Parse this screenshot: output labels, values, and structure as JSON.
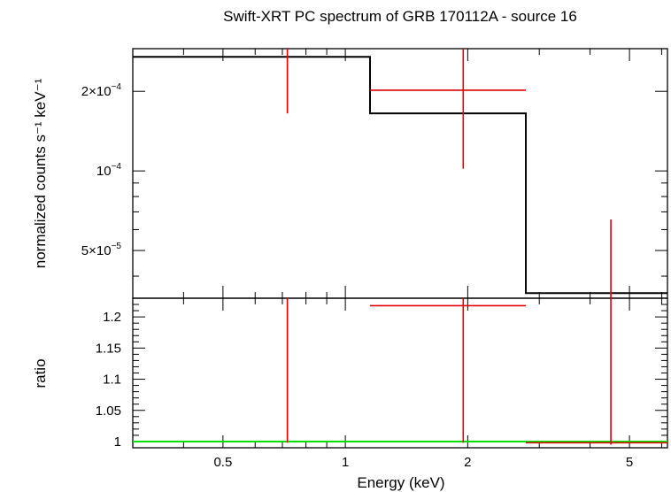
{
  "chart_data": {
    "type": "line",
    "title": "Swift-XRT PC spectrum of GRB 170112A - source 16",
    "xlabel": "Energy (keV)",
    "xscale": "log",
    "xlim": [
      0.3,
      6.2
    ],
    "x_ticks": [
      {
        "v": 0.5,
        "label": "0.5"
      },
      {
        "v": 1,
        "label": "1"
      },
      {
        "v": 2,
        "label": "2"
      },
      {
        "v": 5,
        "label": "5"
      }
    ],
    "top_panel": {
      "ylabel": "normalized counts s⁻¹ keV⁻¹",
      "yscale": "log",
      "ylim": [
        3.3e-05,
        0.00029
      ],
      "y_ticks": [
        {
          "v": 5e-05,
          "mant": "5×10",
          "exp": "−5"
        },
        {
          "v": 0.0001,
          "mant": "10",
          "exp": "−4"
        },
        {
          "v": 0.0002,
          "mant": "2×10",
          "exp": "−4"
        }
      ],
      "data_points": [
        {
          "x": 0.72,
          "xerr": [
            0.72,
            0.72
          ],
          "y": 0.0003,
          "yerr": [
            0.000165,
            0.00033
          ]
        },
        {
          "x": 1.95,
          "xerr": [
            1.15,
            2.78
          ],
          "y": 0.000202,
          "yerr": [
            0.000102,
            0.000315
          ]
        },
        {
          "x": 4.5,
          "xerr": [
            4.5,
            4.5
          ],
          "y": 3.5e-05,
          "yerr": [
            3.3e-05,
            6.55e-05
          ]
        }
      ],
      "model_steps": [
        {
          "x0": 0.3,
          "x1": 1.15,
          "y": 0.00027
        },
        {
          "x0": 1.15,
          "x1": 2.78,
          "y": 0.000165
        },
        {
          "x0": 2.78,
          "x1": 6.2,
          "y": 3.45e-05
        }
      ]
    },
    "bottom_panel": {
      "ylabel": "ratio",
      "ylim": [
        0.99,
        1.23
      ],
      "y_ticks": [
        {
          "v": 1,
          "label": "1"
        },
        {
          "v": 1.05,
          "label": "1.05"
        },
        {
          "v": 1.1,
          "label": "1.1"
        },
        {
          "v": 1.15,
          "label": "1.15"
        },
        {
          "v": 1.2,
          "label": "1.2"
        }
      ],
      "data_points": [
        {
          "x": 0.72,
          "xerr": [
            0.72,
            0.72
          ],
          "y": 1.0,
          "yerr": [
            0.998,
            1.25
          ]
        },
        {
          "x": 1.95,
          "xerr": [
            1.15,
            2.78
          ],
          "y": 1.218,
          "yerr": [
            0.998,
            1.25
          ]
        },
        {
          "x": 4.5,
          "xerr": [
            2.78,
            6.2
          ],
          "y": 0.998,
          "yerr": [
            0.995,
            1.25
          ]
        }
      ],
      "unity_line": 1.0
    }
  }
}
